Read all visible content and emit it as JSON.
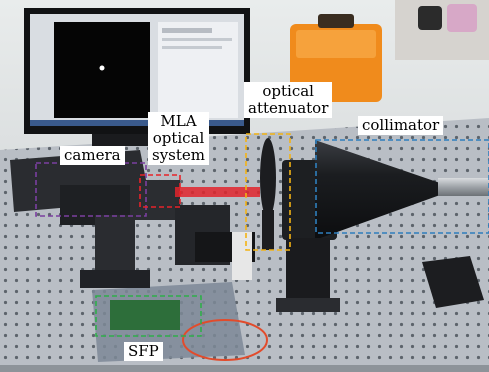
{
  "labels": {
    "camera": "camera",
    "mla": [
      "MLA",
      "optical",
      "system"
    ],
    "attenuator": [
      "optical",
      "attenuator"
    ],
    "collimator": "collimator",
    "sfp": "SFP"
  },
  "box_colors": {
    "camera": "#7b3fa0",
    "mla": "#e8232a",
    "attenuator": "#f3b315",
    "collimator": "#2f7fbd",
    "sfp": "#2fae4a"
  }
}
